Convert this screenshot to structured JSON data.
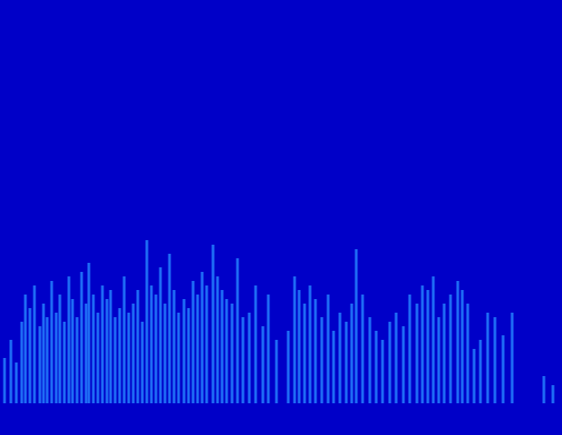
{
  "chart_data": {
    "type": "bar",
    "tick_labels": false,
    "color": "#1e6cf5",
    "xlim": [
      0,
      620
    ],
    "ylim": [
      0,
      200
    ],
    "x": [
      5,
      12,
      18,
      24,
      28,
      33,
      38,
      44,
      48,
      52,
      57,
      62,
      66,
      71,
      76,
      80,
      85,
      90,
      95,
      98,
      103,
      108,
      113,
      118,
      122,
      127,
      132,
      137,
      142,
      147,
      152,
      157,
      162,
      167,
      172,
      177,
      182,
      187,
      192,
      197,
      203,
      208,
      213,
      218,
      223,
      228,
      235,
      240,
      245,
      250,
      256,
      262,
      268,
      275,
      282,
      290,
      296,
      305,
      318,
      325,
      330,
      336,
      342,
      348,
      355,
      362,
      368,
      375,
      382,
      388,
      393,
      400,
      408,
      415,
      422,
      430,
      437,
      445,
      452,
      460,
      466,
      472,
      478,
      484,
      490,
      497,
      505,
      510,
      516,
      523,
      530,
      538,
      546,
      555,
      565,
      600,
      610
    ],
    "values": [
      50,
      70,
      45,
      90,
      120,
      105,
      130,
      85,
      110,
      95,
      135,
      100,
      120,
      90,
      140,
      115,
      95,
      145,
      110,
      155,
      120,
      100,
      130,
      115,
      125,
      95,
      105,
      140,
      100,
      110,
      125,
      90,
      180,
      130,
      120,
      150,
      110,
      165,
      125,
      100,
      115,
      105,
      135,
      120,
      145,
      130,
      175,
      140,
      125,
      115,
      110,
      160,
      95,
      100,
      130,
      85,
      120,
      70,
      80,
      140,
      125,
      110,
      130,
      115,
      95,
      120,
      80,
      100,
      90,
      110,
      170,
      120,
      95,
      80,
      70,
      90,
      100,
      85,
      120,
      110,
      130,
      125,
      140,
      95,
      110,
      120,
      135,
      125,
      110,
      60,
      70,
      100,
      95,
      75,
      100,
      30,
      20
    ]
  }
}
